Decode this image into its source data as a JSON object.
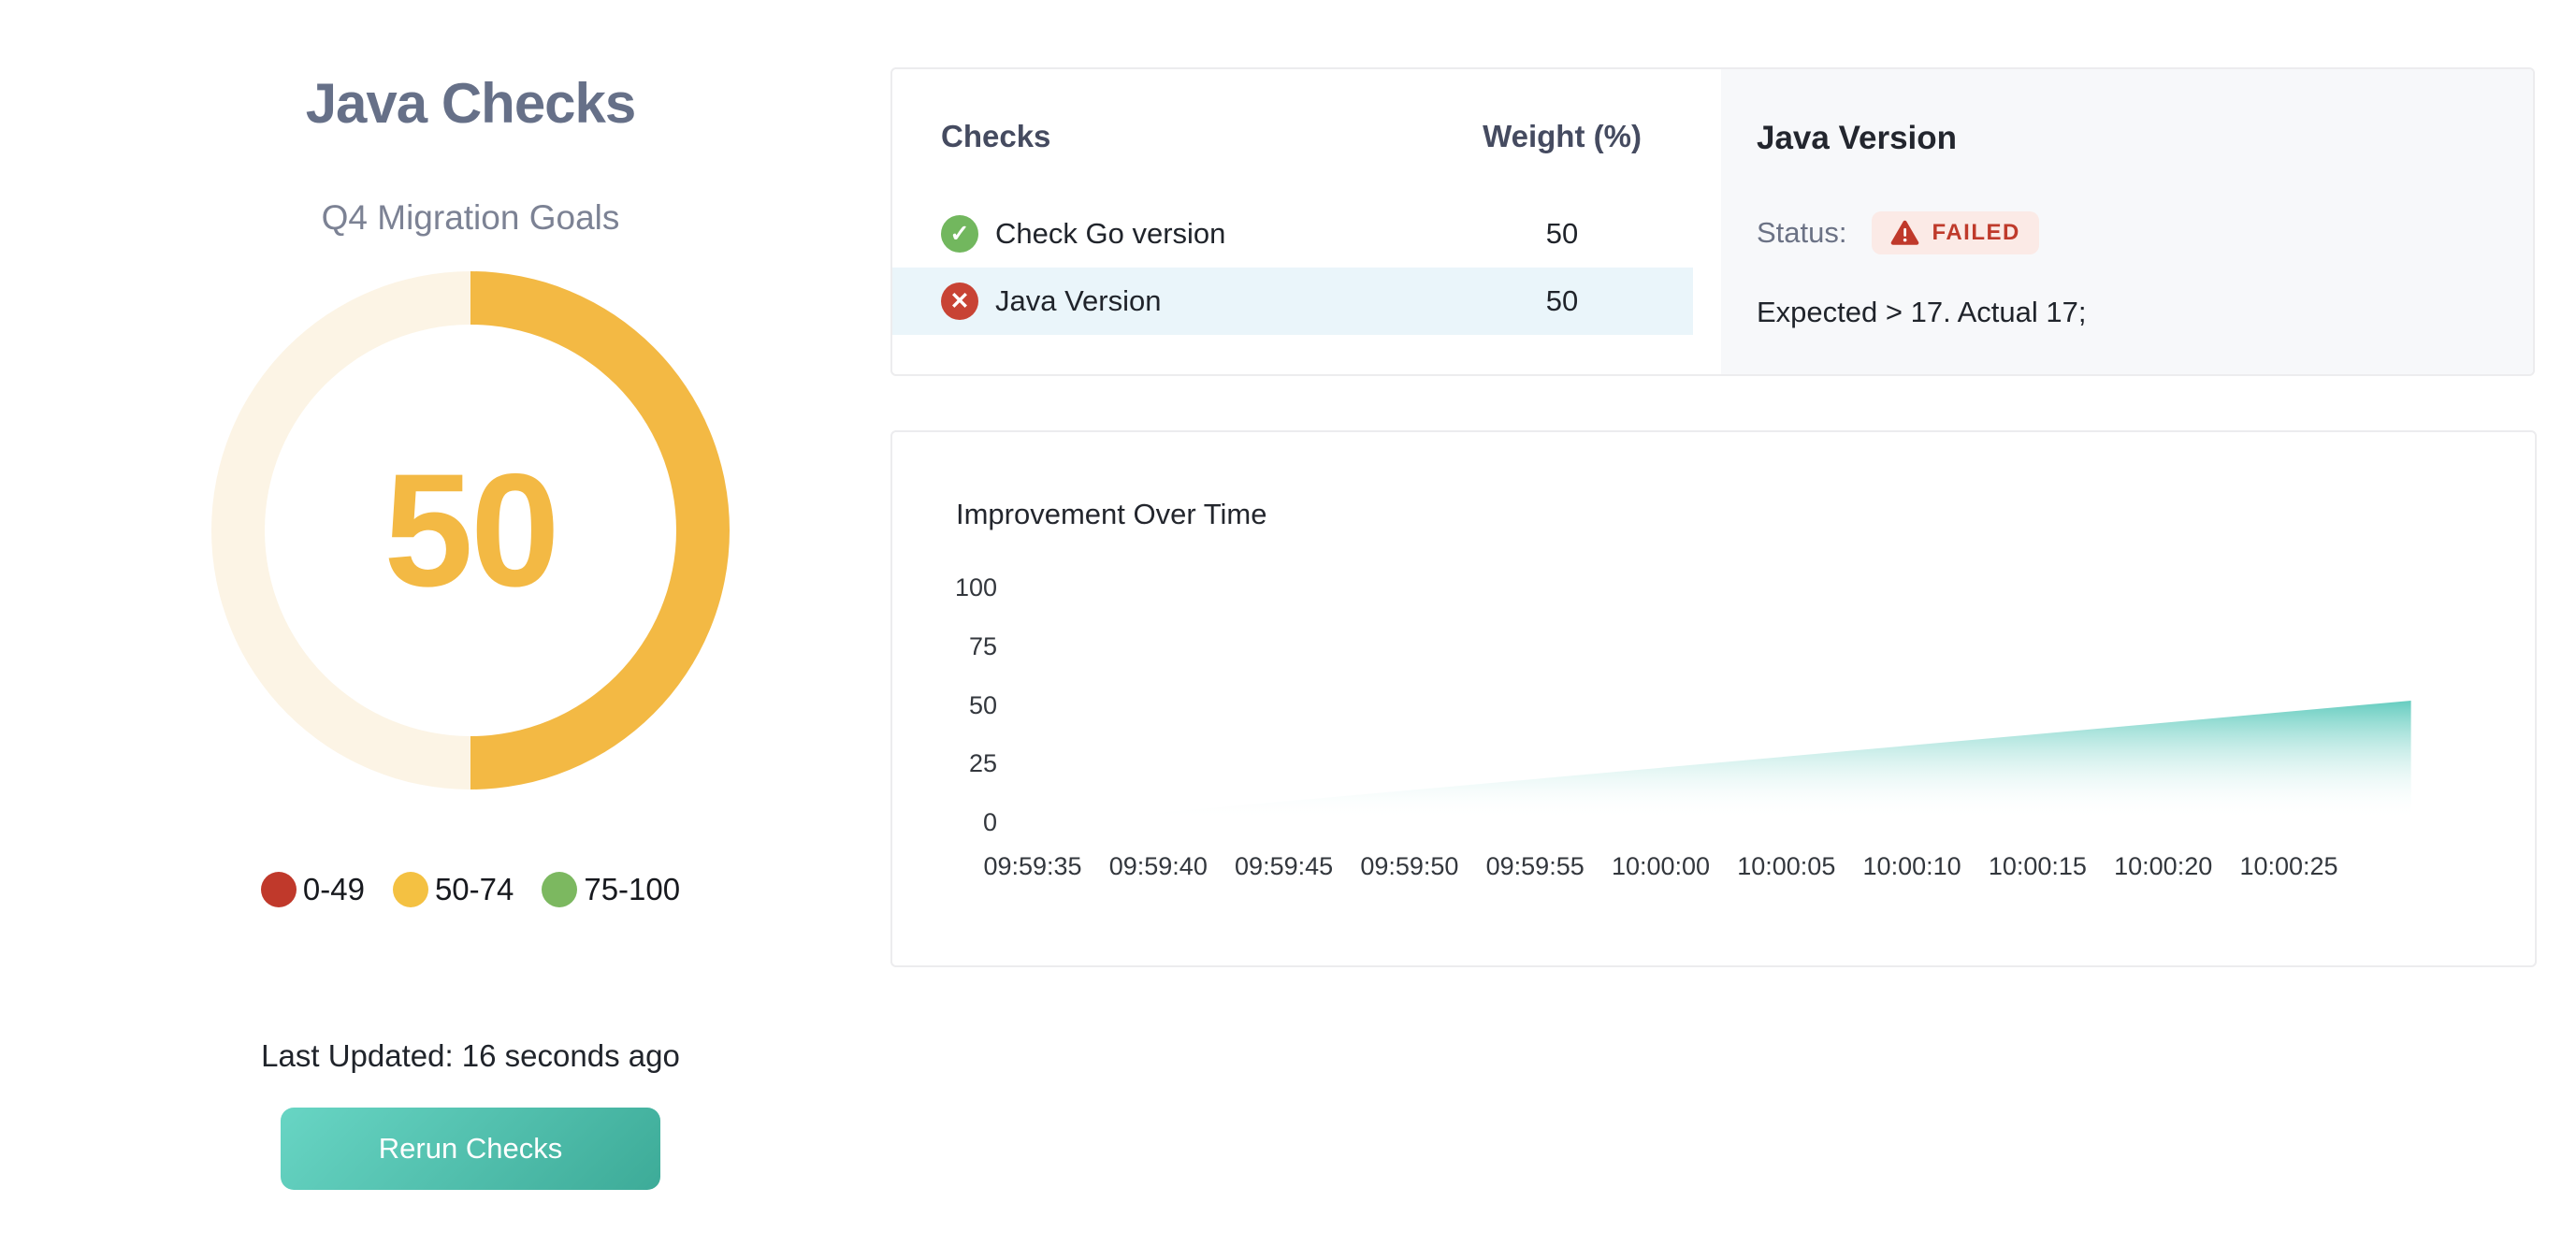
{
  "header": {
    "title": "Java Checks",
    "subtitle": "Q4 Migration Goals"
  },
  "gauge": {
    "value": "50",
    "percent": 50,
    "fill_color": "#f3b944",
    "track_color": "#fcf4e5",
    "legend": [
      {
        "label": "0-49",
        "color": "#c0392b"
      },
      {
        "label": "50-74",
        "color": "#f4c142"
      },
      {
        "label": "75-100",
        "color": "#7cb860"
      }
    ]
  },
  "status_bar": {
    "last_updated": "Last Updated: 16 seconds ago"
  },
  "actions": {
    "rerun_label": "Rerun Checks"
  },
  "checks_panel": {
    "columns": {
      "checks": "Checks",
      "weight": "Weight (%)"
    },
    "rows": [
      {
        "name": "Check Go version",
        "weight": "50",
        "status": "passed",
        "selected": false
      },
      {
        "name": "Java Version",
        "weight": "50",
        "status": "failed",
        "selected": true
      }
    ]
  },
  "detail_panel": {
    "title": "Java Version",
    "status_label": "Status:",
    "status_value": "FAILED",
    "message": "Expected > 17. Actual 17;"
  },
  "chart_data": {
    "type": "area",
    "title": "Improvement Over Time",
    "x_ticks": [
      "09:59:35",
      "09:59:40",
      "09:59:45",
      "09:59:50",
      "09:59:55",
      "10:00:00",
      "10:00:05",
      "10:00:10",
      "10:00:15",
      "10:00:20",
      "10:00:25"
    ],
    "tick_interval_seconds": 5,
    "y_ticks": [
      100,
      75,
      50,
      25,
      0
    ],
    "ylim": [
      0,
      100
    ],
    "grid": false,
    "legend_position": "none",
    "series": [
      {
        "name": "Improvement",
        "points": [
          {
            "t": "09:59:37",
            "v": 0
          },
          {
            "t": "10:00:30",
            "v": 51
          }
        ]
      }
    ],
    "area_top_color": "#58c8ba"
  }
}
